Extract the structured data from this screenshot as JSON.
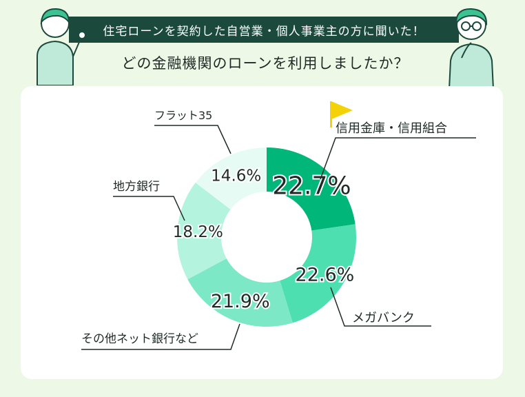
{
  "header": {
    "banner": "住宅ローンを契約した自営業・個人事業主の方に聞いた！",
    "question": "どの金融機関のローンを利用しましたか？"
  },
  "chart_data": {
    "type": "pie",
    "variant": "donut",
    "categories": [
      "信用金庫・信用組合",
      "メガバンク",
      "その他ネット銀行など",
      "地方銀行",
      "フラット35"
    ],
    "values": [
      22.7,
      22.6,
      21.9,
      18.2,
      14.6
    ],
    "value_labels": [
      "22.7%",
      "22.6%",
      "21.9%",
      "18.2%",
      "14.6%"
    ],
    "colors": [
      "#00b679",
      "#4ddfb0",
      "#7de8c6",
      "#b4f3dd",
      "#e6fbf3"
    ],
    "highlight": "信用金庫・信用組合",
    "highlight_icon": "flag-icon",
    "highlight_color": "#f4d20a"
  }
}
